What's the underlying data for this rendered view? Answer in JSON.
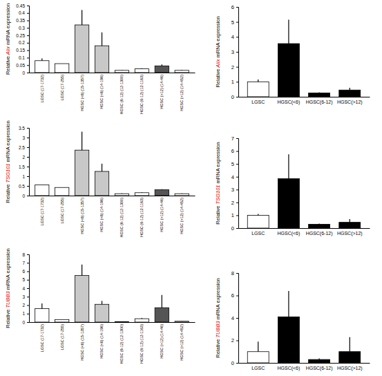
{
  "chart_data": [
    {
      "type": "bar",
      "ylabel": "Relative Alix mRNA expression",
      "categories": [
        "LGSC (17-1732)",
        "LGSC (17-255)",
        "HGSC (<6) (15-1357)",
        "HGSC (<6) (14-196)",
        "HGSC (6-12) (12-1300)",
        "HGSC (6-12) (12-1163)",
        "HGSC (>12) (14-46)",
        "HGSC (>12) (14-452)"
      ],
      "values": [
        0.08,
        0.06,
        0.32,
        0.18,
        0.015,
        0.025,
        0.045,
        0.015
      ],
      "errors": [
        0.015,
        0,
        0.1,
        0.09,
        0.003,
        0.004,
        0.01,
        0.003
      ],
      "colors": [
        "#ffffff",
        "#ffffff",
        "#c8c8c8",
        "#c8c8c8",
        "#ffffff",
        "#ffffff",
        "#555555",
        "#ffffff"
      ],
      "ylim": [
        0,
        0.45
      ],
      "yticks": [
        0,
        0.05,
        0.1,
        0.15,
        0.2,
        0.25,
        0.3,
        0.35,
        0.4,
        0.45
      ]
    },
    {
      "type": "bar",
      "ylabel": "Relative Alix mRNA expression",
      "categories": [
        "LGSC",
        "HGSC(<6)",
        "HGSC(6-12)",
        "HGSC(>12)"
      ],
      "values": [
        1,
        3.55,
        0.25,
        0.45
      ],
      "errors": [
        0.15,
        1.6,
        0.05,
        0.15
      ],
      "colors": [
        "#ffffff",
        "#000000",
        "#000000",
        "#000000"
      ],
      "ylim": [
        0,
        6
      ],
      "yticks": [
        0,
        1,
        2,
        3,
        4,
        5,
        6
      ]
    },
    {
      "type": "bar",
      "ylabel": "Relative TSG101 mRNA expression",
      "categories": [
        "LGSC (17-1732)",
        "LGSC (17-255)",
        "HGSC (<6) (15-1357)",
        "HGSC (<6) (14-196)",
        "HGSC (6-12) (12-1300)",
        "HGSC (6-12) (12-1163)",
        "HGSC (>12) (14-46)",
        "HGSC (>12) (14-452)"
      ],
      "values": [
        0.55,
        0.42,
        2.35,
        1.25,
        0.1,
        0.15,
        0.3,
        0.1
      ],
      "errors": [
        0,
        0,
        0.95,
        0.4,
        0.02,
        0.03,
        0.03,
        0.02
      ],
      "colors": [
        "#ffffff",
        "#ffffff",
        "#c8c8c8",
        "#c8c8c8",
        "#ffffff",
        "#ffffff",
        "#555555",
        "#ffffff"
      ],
      "ylim": [
        0,
        3.5
      ],
      "yticks": [
        0,
        0.5,
        1,
        1.5,
        2,
        2.5,
        3,
        3.5
      ]
    },
    {
      "type": "bar",
      "ylabel": "Relative TSG101 mRNA expression",
      "categories": [
        "LGSC",
        "HGSC(<6)",
        "HGSC(6-12)",
        "HGSC(>12)"
      ],
      "values": [
        1,
        3.85,
        0.3,
        0.45
      ],
      "errors": [
        0.1,
        1.9,
        0.05,
        0.25
      ],
      "colors": [
        "#ffffff",
        "#000000",
        "#000000",
        "#000000"
      ],
      "ylim": [
        0,
        7
      ],
      "yticks": [
        0,
        1,
        2,
        3,
        4,
        5,
        6,
        7
      ]
    },
    {
      "type": "bar",
      "ylabel": "Relative TUBB3 mRNA expression",
      "categories": [
        "LGSC (17-1732)",
        "LGSC (17-255)",
        "HGSC (<6) (15-1357)",
        "HGSC (<6) (14-196)",
        "HGSC (6-12) (12-1300)",
        "HGSC (6-12) (12-1163)",
        "HGSC (>12) (14-46)",
        "HGSC (>12) (14-452)"
      ],
      "values": [
        1.6,
        0.3,
        5.5,
        2.1,
        0.05,
        0.4,
        1.7,
        0.1
      ],
      "errors": [
        0.6,
        0,
        1.3,
        0.4,
        0.02,
        0.1,
        1.5,
        0.03
      ],
      "colors": [
        "#ffffff",
        "#ffffff",
        "#c8c8c8",
        "#c8c8c8",
        "#ffffff",
        "#ffffff",
        "#555555",
        "#ffffff"
      ],
      "ylim": [
        0,
        8
      ],
      "yticks": [
        0,
        1,
        2,
        3,
        4,
        5,
        6,
        7,
        8
      ]
    },
    {
      "type": "bar",
      "ylabel": "Relative TUBB3 mRNA expression",
      "categories": [
        "LGSC",
        "HGSC(<6)",
        "HGSC(6-12)",
        "HGSC(>12)"
      ],
      "values": [
        1,
        4.1,
        0.3,
        1.0
      ],
      "errors": [
        0.9,
        2.3,
        0.1,
        1.3
      ],
      "colors": [
        "#ffffff",
        "#000000",
        "#000000",
        "#000000"
      ],
      "ylim": [
        0,
        8
      ],
      "yticks": [
        0,
        2,
        4,
        6,
        8
      ]
    }
  ]
}
